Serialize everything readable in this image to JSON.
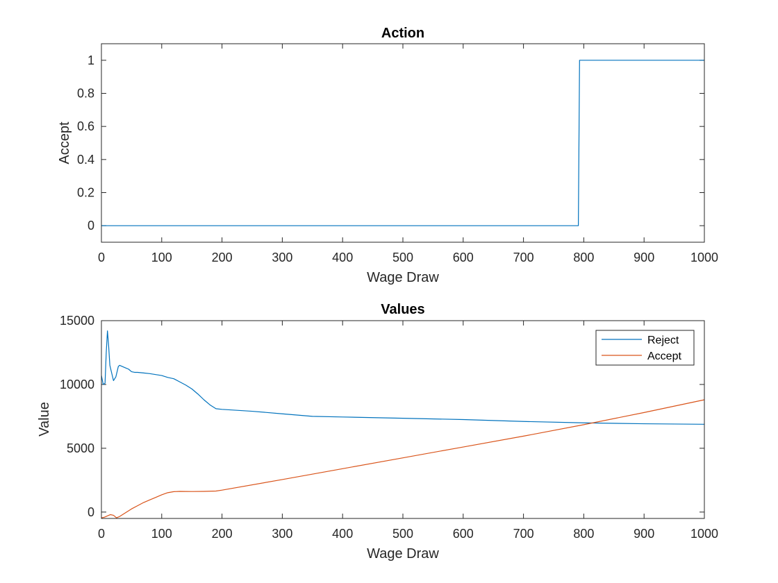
{
  "chart_data": [
    {
      "type": "line",
      "title": "Action",
      "xlabel": "Wage Draw",
      "ylabel": "Accept",
      "xlim": [
        0,
        1000
      ],
      "ylim": [
        -0.1,
        1.1
      ],
      "xticks": [
        0,
        100,
        200,
        300,
        400,
        500,
        600,
        700,
        800,
        900,
        1000
      ],
      "xtick_labels": [
        "0",
        "100",
        "200",
        "300",
        "400",
        "500",
        "600",
        "700",
        "800",
        "900",
        "1000"
      ],
      "yticks": [
        0,
        0.2,
        0.4,
        0.6,
        0.8,
        1
      ],
      "ytick_labels": [
        "0",
        "0.2",
        "0.4",
        "0.6",
        "0.8",
        "1"
      ],
      "grid": false,
      "series": [
        {
          "color": "#0072BD",
          "x": [
            0,
            791,
            793,
            1000
          ],
          "y": [
            0,
            0,
            1,
            1
          ]
        }
      ]
    },
    {
      "type": "line",
      "title": "Values",
      "xlabel": "Wage Draw",
      "ylabel": "Value",
      "xlim": [
        0,
        1000
      ],
      "ylim": [
        -500,
        15000
      ],
      "xticks": [
        0,
        100,
        200,
        300,
        400,
        500,
        600,
        700,
        800,
        900,
        1000
      ],
      "xtick_labels": [
        "0",
        "100",
        "200",
        "300",
        "400",
        "500",
        "600",
        "700",
        "800",
        "900",
        "1000"
      ],
      "yticks": [
        0,
        5000,
        10000,
        15000
      ],
      "ytick_labels": [
        "0",
        "5000",
        "10000",
        "15000"
      ],
      "grid": false,
      "legend": "top-right",
      "series": [
        {
          "name": "Reject",
          "color": "#0072BD",
          "x": [
            0,
            3,
            6,
            8,
            10,
            12,
            14,
            16,
            20,
            24,
            28,
            30,
            35,
            40,
            45,
            50,
            55,
            60,
            70,
            80,
            100,
            110,
            120,
            130,
            140,
            150,
            160,
            170,
            180,
            190,
            200,
            250,
            300,
            350,
            400,
            500,
            600,
            700,
            800,
            900,
            1000
          ],
          "y": [
            10700,
            10000,
            10100,
            12500,
            14200,
            13000,
            11500,
            11100,
            10300,
            10600,
            11400,
            11500,
            11400,
            11300,
            11200,
            11000,
            10950,
            10950,
            10900,
            10850,
            10700,
            10550,
            10450,
            10200,
            9950,
            9650,
            9250,
            8800,
            8400,
            8100,
            8050,
            7900,
            7700,
            7500,
            7450,
            7350,
            7250,
            7100,
            6990,
            6920,
            6880
          ]
        },
        {
          "name": "Accept",
          "color": "#D95319",
          "x": [
            0,
            5,
            10,
            15,
            20,
            25,
            30,
            40,
            50,
            60,
            70,
            80,
            90,
            100,
            110,
            120,
            130,
            150,
            170,
            190,
            200,
            300,
            400,
            500,
            600,
            700,
            800,
            900,
            1000
          ],
          "y": [
            -450,
            -400,
            -300,
            -200,
            -250,
            -450,
            -350,
            -50,
            250,
            500,
            750,
            950,
            1150,
            1350,
            1520,
            1600,
            1620,
            1610,
            1620,
            1650,
            1720,
            2550,
            3400,
            4250,
            5100,
            5950,
            6850,
            7800,
            8800
          ]
        }
      ]
    }
  ]
}
